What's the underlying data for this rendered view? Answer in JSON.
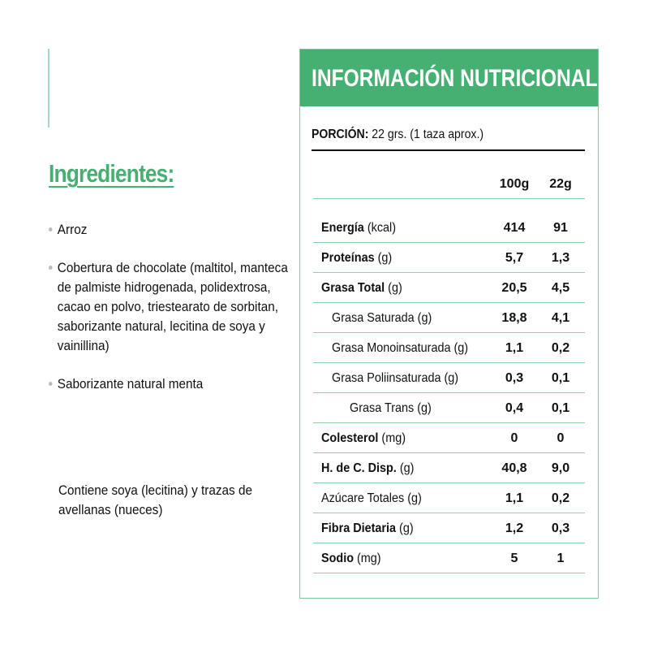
{
  "ingredients": {
    "title": "Ingredientes:",
    "items": [
      "Arroz",
      "Cobertura de chocolate (maltitol, manteca de palmiste hidrogenada, polidextrosa, cacao en polvo, triestearato de sorbitan, saborizante natural, lecitina de soya y vainillina)",
      "Saborizante natural menta"
    ],
    "contains": "Contiene soya (lecitina) y trazas de avellanas (nueces)"
  },
  "nutrition": {
    "title": "INFORMACIÓN NUTRICIONAL",
    "portion_label": "PORCIÓN:",
    "portion_value": " 22 grs. (1 taza aprox.)",
    "columns": [
      "100g",
      "22g"
    ],
    "rows": [
      {
        "name": "Energía",
        "unit": " (kcal)",
        "bold": true,
        "indent": 0,
        "v100": "414",
        "v22": "91"
      },
      {
        "name": "Proteínas",
        "unit": " (g)",
        "bold": true,
        "indent": 0,
        "v100": "5,7",
        "v22": "1,3"
      },
      {
        "name": "Grasa Total",
        "unit": " (g)",
        "bold": true,
        "indent": 0,
        "v100": "20,5",
        "v22": "4,5"
      },
      {
        "name": "Grasa Saturada",
        "unit": " (g)",
        "bold": false,
        "indent": 1,
        "v100": "18,8",
        "v22": "4,1"
      },
      {
        "name": "Grasa Monoinsaturada",
        "unit": " (g)",
        "bold": false,
        "indent": 1,
        "v100": "1,1",
        "v22": "0,2"
      },
      {
        "name": "Grasa Poliinsaturada",
        "unit": " (g)",
        "bold": false,
        "indent": 1,
        "v100": "0,3",
        "v22": "0,1"
      },
      {
        "name": "Grasa Trans",
        "unit": " (g)",
        "bold": false,
        "indent": 2,
        "v100": "0,4",
        "v22": "0,1"
      },
      {
        "name": "Colesterol",
        "unit": " (mg)",
        "bold": true,
        "indent": 0,
        "v100": "0",
        "v22": "0"
      },
      {
        "name": "H. de C. Disp.",
        "unit": " (g)",
        "bold": true,
        "indent": 0,
        "v100": "40,8",
        "v22": "9,0"
      },
      {
        "name": "Azúcare Totales",
        "unit": " (g)",
        "bold": false,
        "indent": 0,
        "v100": "1,1",
        "v22": "0,2"
      },
      {
        "name": "Fibra Dietaria",
        "unit": " (g)",
        "bold": true,
        "indent": 0,
        "v100": "1,2",
        "v22": "0,3"
      },
      {
        "name": "Sodio",
        "unit": " (mg)",
        "bold": true,
        "indent": 0,
        "v100": "5",
        "v22": "1"
      }
    ]
  },
  "colors": {
    "accent": "#45b072",
    "divider": "#8fd0ab"
  }
}
